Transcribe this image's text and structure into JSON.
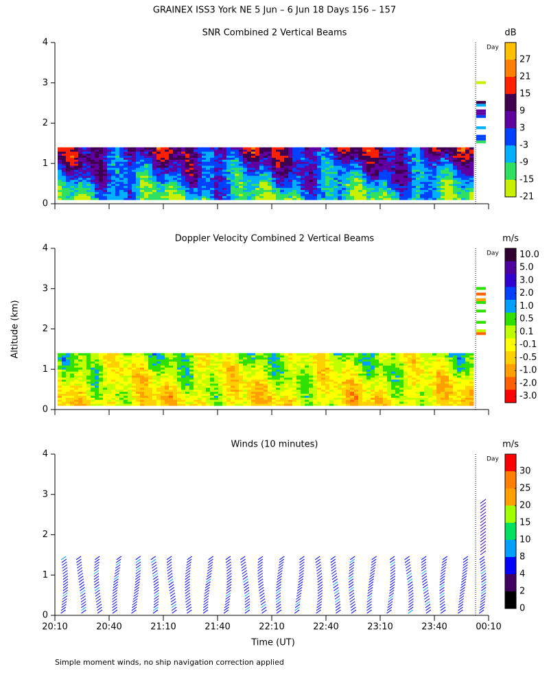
{
  "title": "GRAINEX ISS3 York NE   5 Jun –  6 Jun 18 Days 156 – 157",
  "y_label": "Altitude (km)",
  "x_label": "Time (UT)",
  "footnote": "Simple moment winds, no ship navigation correction applied",
  "day_label": "Day",
  "chart_data": [
    {
      "type": "heatmap",
      "title": "SNR Combined 2 Vertical Beams",
      "colorbar_label": "dB",
      "colorbar_ticks": [
        27,
        21,
        15,
        9,
        3,
        -3,
        -9,
        -15,
        -21
      ],
      "colors": [
        "#ffc000",
        "#ff8000",
        "#ff2000",
        "#400050",
        "#6000a0",
        "#0040ff",
        "#00b0ff",
        "#30e060",
        "#c8f000"
      ],
      "ylim": [
        0,
        4
      ],
      "yticks": [
        0,
        1,
        2,
        3,
        4
      ]
    },
    {
      "type": "heatmap",
      "title": "Doppler Velocity Combined 2 Vertical Beams",
      "colorbar_label": "m/s",
      "colorbar_ticks": [
        {
          "value": 10,
          "label": "10.0"
        },
        {
          "value": 5,
          "label": "5.0"
        },
        {
          "value": 3,
          "label": "3.0"
        },
        {
          "value": 2,
          "label": "2.0"
        },
        {
          "value": 1,
          "label": "1.0"
        },
        0.5,
        0.1,
        -0.1,
        -0.5,
        {
          "value": -1,
          "label": "-1.0"
        },
        {
          "value": -2,
          "label": "-2.0"
        },
        {
          "value": -3,
          "label": "-3.0"
        }
      ],
      "colors": [
        "#300030",
        "#5000a0",
        "#3000d0",
        "#0040ff",
        "#00a0ff",
        "#30e000",
        "#c0ff00",
        "#ffff00",
        "#ffd000",
        "#ffa000",
        "#ff6000",
        "#ff0000"
      ],
      "ylim": [
        0,
        4
      ],
      "yticks": [
        0,
        1,
        2,
        3,
        4
      ]
    },
    {
      "type": "barbs",
      "title": "Winds (10 minutes)",
      "colorbar_label": "m/s",
      "colorbar_ticks": [
        30,
        25,
        20,
        15,
        10,
        8,
        4,
        2,
        0
      ],
      "colors": [
        "#ff0000",
        "#ff8000",
        "#ffa000",
        "#a0ff00",
        "#00e060",
        "#00a0ff",
        "#0000ff",
        "#400060",
        "#000000"
      ],
      "ylim": [
        0,
        4
      ],
      "yticks": [
        0,
        1,
        2,
        3,
        4
      ],
      "xlim": [
        0,
        240
      ],
      "xticks": [
        {
          "value": 0,
          "label": "20:10"
        },
        {
          "value": 30,
          "label": "20:40"
        },
        {
          "value": 60,
          "label": "21:10"
        },
        {
          "value": 90,
          "label": "21:40"
        },
        {
          "value": 120,
          "label": "22:10"
        },
        {
          "value": 150,
          "label": "22:40"
        },
        {
          "value": 180,
          "label": "23:10"
        },
        {
          "value": 210,
          "label": "23:40"
        },
        {
          "value": 240,
          "label": "00:10"
        }
      ]
    }
  ]
}
